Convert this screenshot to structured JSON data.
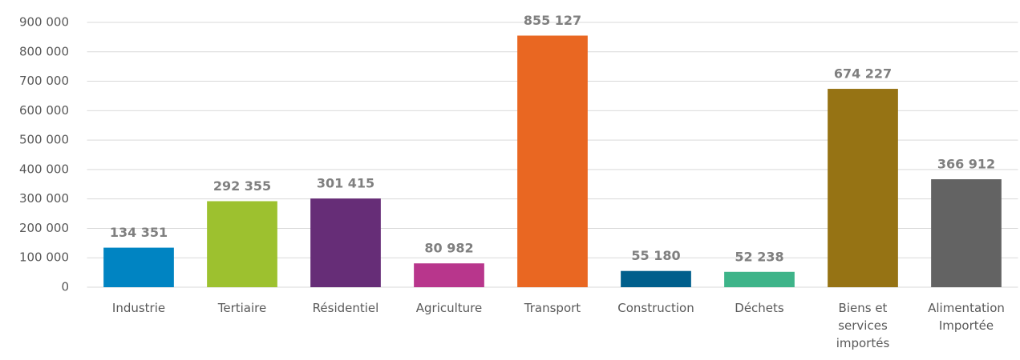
{
  "chart_data": {
    "type": "bar",
    "categories": [
      "Industrie",
      "Tertiaire",
      "Résidentiel",
      "Agriculture",
      "Transport",
      "Construction",
      "Déchets",
      "Biens et services importés",
      "Alimentation Importée"
    ],
    "values": [
      134351,
      292355,
      301415,
      80982,
      855127,
      55180,
      52238,
      674227,
      366912
    ],
    "value_labels": [
      "134 351",
      "292 355",
      "301 415",
      "80 982",
      "855 127",
      "55 180",
      "52 238",
      "674 227",
      "366 912"
    ],
    "colors": [
      "#0084c2",
      "#9dc12f",
      "#662d77",
      "#b8368c",
      "#e96722",
      "#005f8c",
      "#3eb489",
      "#967314",
      "#636363"
    ],
    "ylim": [
      0,
      900000
    ],
    "yticks": [
      0,
      {
        "value": 100000,
        "label": "100 000"
      },
      {
        "value": 200000,
        "label": "200 000"
      },
      {
        "value": 300000,
        "label": "300 000"
      },
      {
        "value": 400000,
        "label": "400 000"
      },
      {
        "value": 500000,
        "label": "500 000"
      },
      {
        "value": 600000,
        "label": "600 000"
      },
      {
        "value": 700000,
        "label": "700 000"
      },
      {
        "value": 800000,
        "label": "800 000"
      },
      {
        "value": 900000,
        "label": "900 000"
      }
    ],
    "grid": true
  }
}
